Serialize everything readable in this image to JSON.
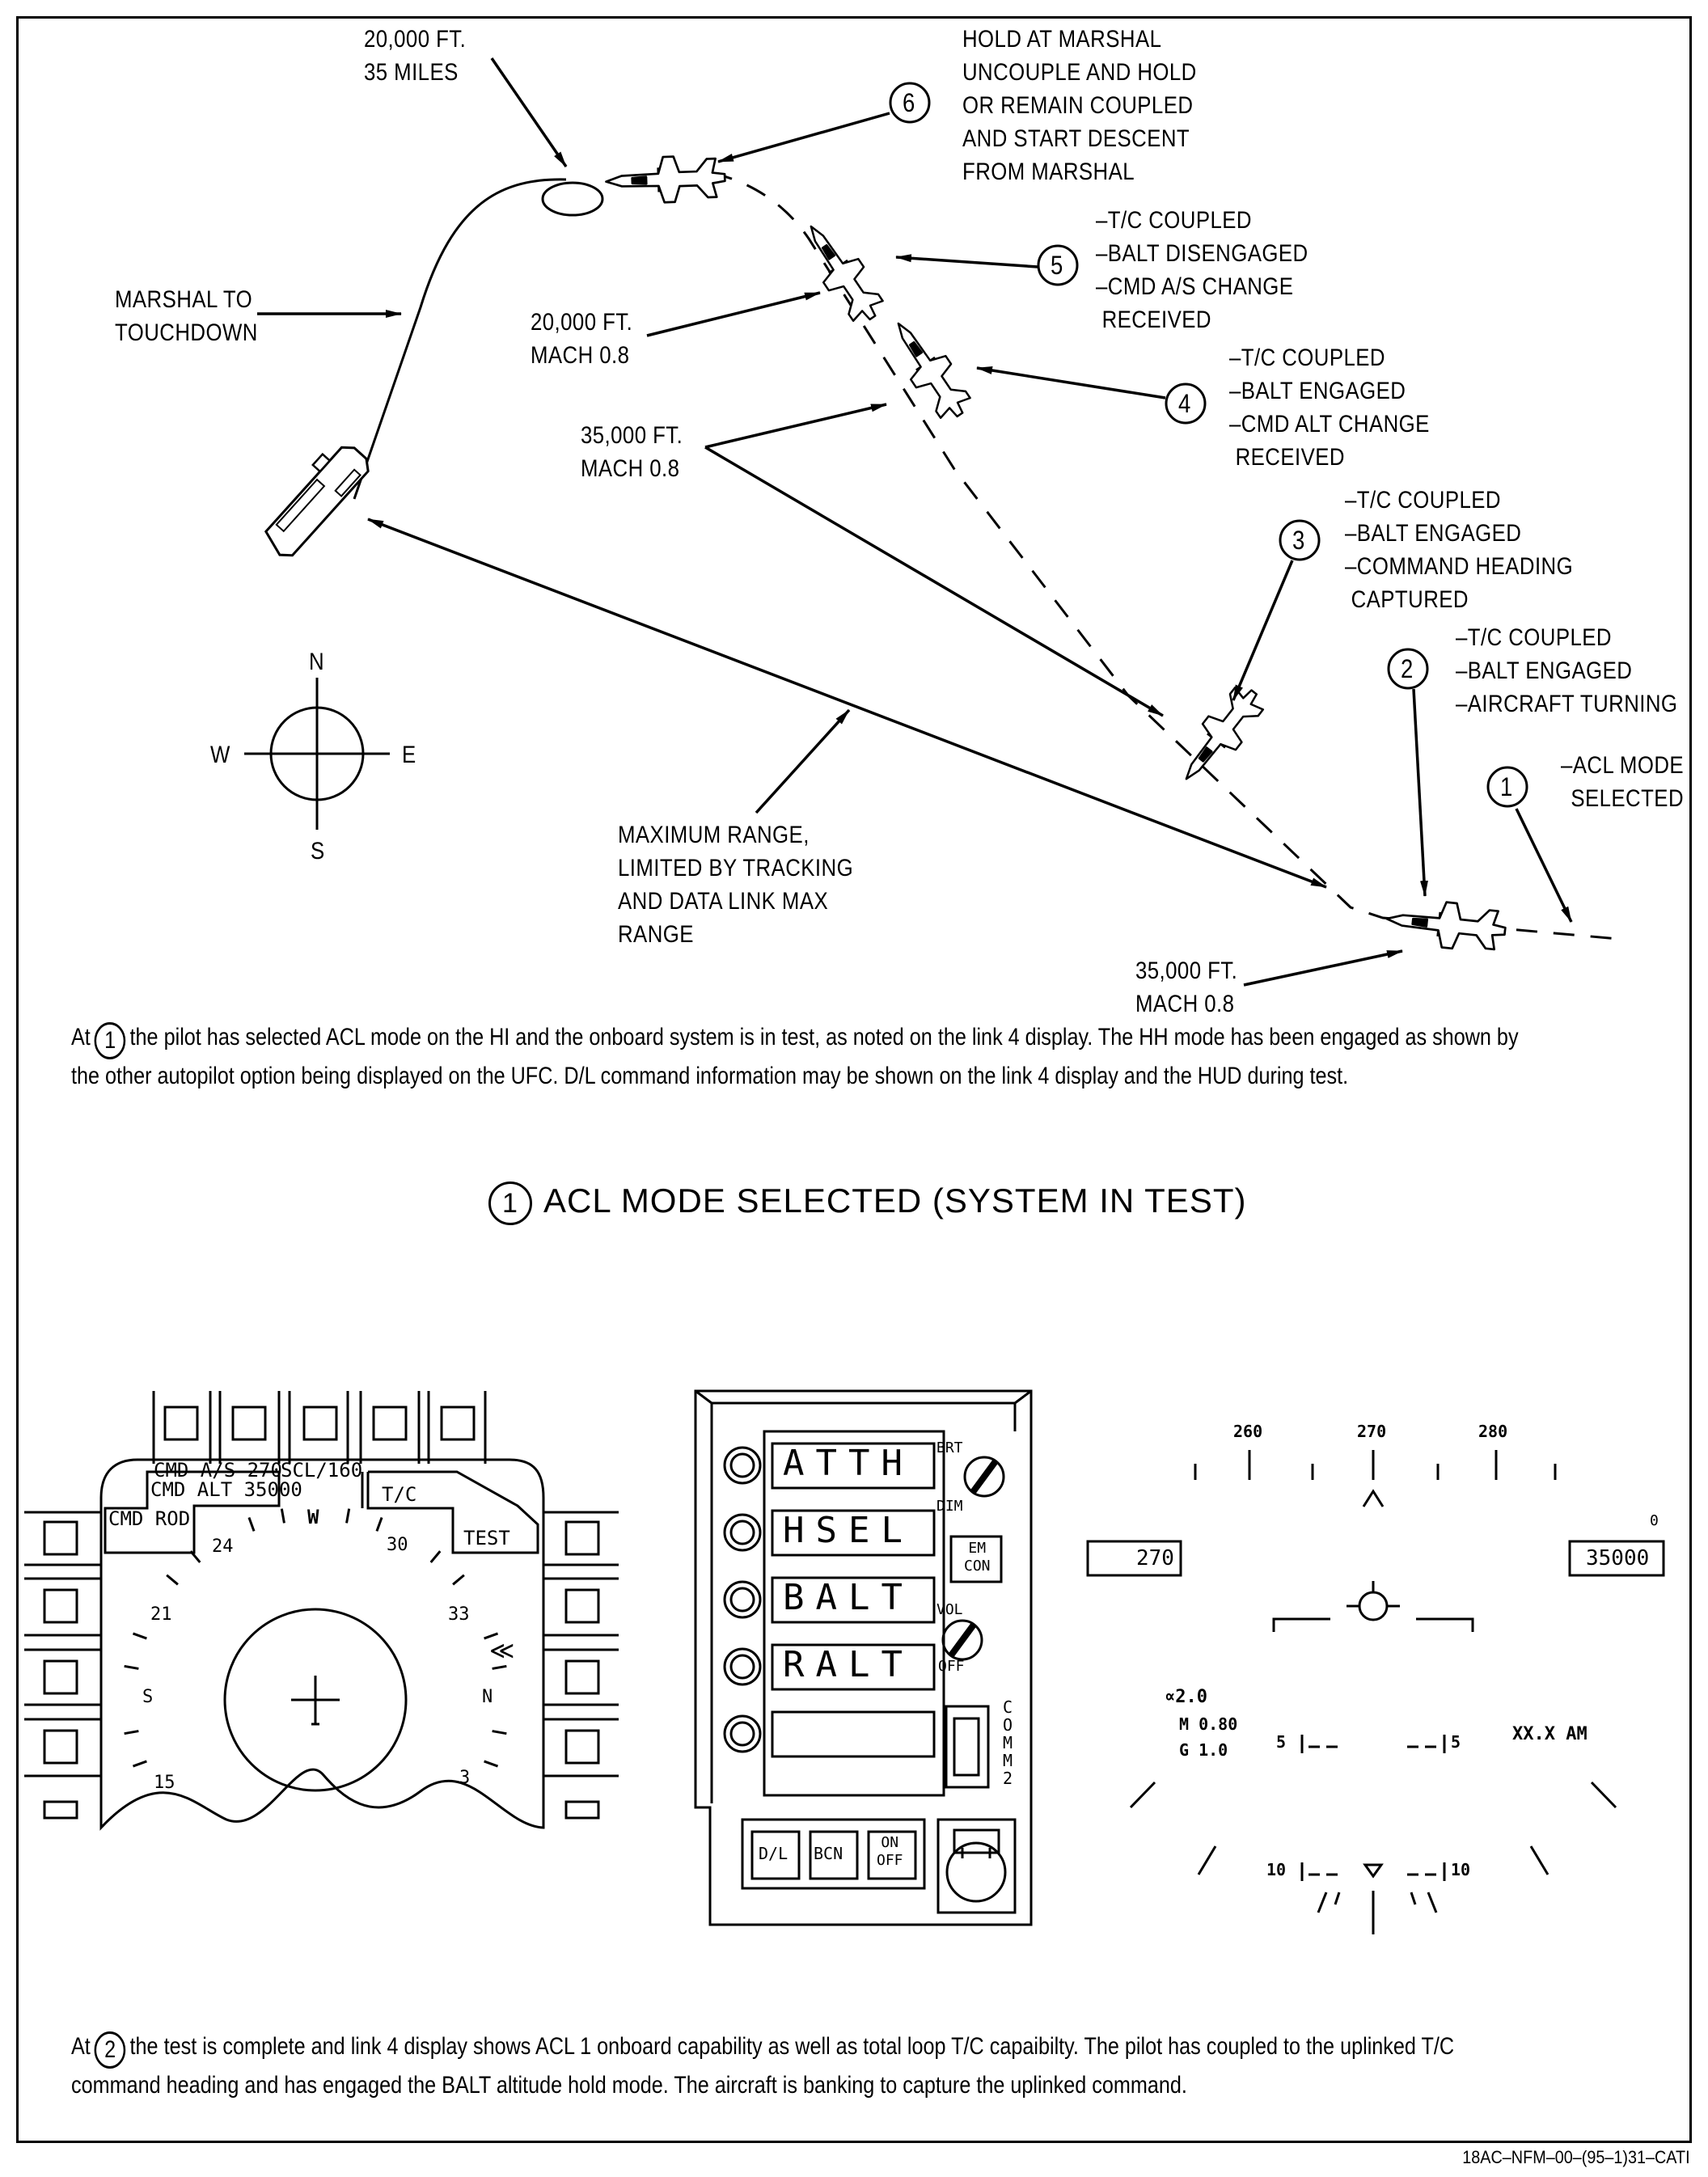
{
  "flight_labels": {
    "marshal_alt": [
      "20,000 FT.",
      "35 MILES"
    ],
    "hold_at_marshal": [
      "HOLD AT MARSHAL",
      "UNCOUPLE AND HOLD",
      "OR REMAIN COUPLED",
      "AND START DESCENT",
      "FROM MARSHAL"
    ],
    "step5": [
      "–T/C COUPLED",
      "–BALT DISENGAGED",
      "–CMD A/S CHANGE",
      " RECEIVED"
    ],
    "marshal_to_touchdown": [
      "MARSHAL TO",
      "TOUCHDOWN"
    ],
    "alt_20000_mach": [
      "20,000 FT.",
      "MACH 0.8"
    ],
    "step4": [
      "–T/C COUPLED",
      "–BALT ENGAGED",
      "–CMD ALT CHANGE",
      " RECEIVED"
    ],
    "alt_35000_mach_upper": [
      "35,000 FT.",
      "MACH 0.8"
    ],
    "step3": [
      "–T/C COUPLED",
      "–BALT ENGAGED",
      "–COMMAND HEADING",
      " CAPTURED"
    ],
    "step2": [
      "–T/C COUPLED",
      "–BALT ENGAGED",
      "–AIRCRAFT TURNING"
    ],
    "step1": [
      "–ACL MODE",
      "SELECTED"
    ],
    "max_range": [
      "MAXIMUM RANGE,",
      "LIMITED BY TRACKING",
      "AND DATA LINK MAX",
      "RANGE"
    ],
    "alt_35000_mach_lower": [
      "35,000 FT.",
      "MACH 0.8"
    ]
  },
  "step_numbers": [
    "1",
    "2",
    "3",
    "4",
    "5",
    "6"
  ],
  "compass": {
    "n": "N",
    "s": "S",
    "e": "E",
    "w": "W"
  },
  "paragraph1": {
    "prefix": "At",
    "step": "1",
    "line1": "the pilot has selected ACL mode on the HI and the onboard system is in test, as noted on the link 4 display. The HH mode has been engaged as shown by",
    "line2": "the other autopilot option being displayed on the UFC. D/L command information may be shown on the link 4 display and the HUD during test."
  },
  "section_title": {
    "step": "1",
    "text": "ACL MODE SELECTED (SYSTEM IN TEST)"
  },
  "hsi_display": {
    "cmd_as": "CMD A/S 270",
    "cmd_alt": "CMD ALT 35000",
    "cmd_rod": "CMD ROD",
    "scl": "SCL/160",
    "tc": "T/C",
    "test": "TEST",
    "ticks": [
      "24",
      "W",
      "30",
      "21",
      "33",
      "S",
      "N",
      "15",
      "3"
    ]
  },
  "ufc": {
    "windows": [
      "ATTH",
      "HSEL",
      "BALT",
      "RALT",
      ""
    ],
    "brt": "BRT",
    "dim": "DIM",
    "emcon": [
      "EM",
      "CON"
    ],
    "vol": "VOL",
    "off": "OFF",
    "comm2": [
      "C",
      "O",
      "M",
      "M",
      "2"
    ],
    "buttons": [
      "D/L",
      "BCN"
    ],
    "onoff": [
      "ON",
      "OFF"
    ]
  },
  "hud": {
    "heading_ticks": [
      "260",
      "270",
      "280"
    ],
    "airspeed_box": "270",
    "altitude_box": "35000",
    "altitude_small_zero": "0",
    "alpha": "∝2.0",
    "mach": "M 0.80",
    "g": "G 1.0",
    "pitch5_left": "5",
    "pitch5_right": "5",
    "pitch10_left": "10",
    "pitch10_right": "10",
    "time": "XX.X AM"
  },
  "paragraph2": {
    "prefix": "At",
    "step": "2",
    "line1": "the test is complete and link 4 display shows ACL 1 onboard capability as well as total loop T/C capaibilty. The pilot has coupled to the uplinked T/C",
    "line2": "command heading and has engaged the BALT altitude hold mode. The aircraft is banking to capture the uplinked command."
  },
  "footer_code": "18AC–NFM–00–(95–1)31–CATI"
}
